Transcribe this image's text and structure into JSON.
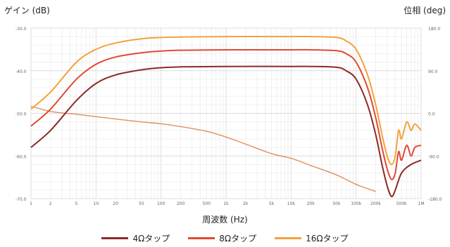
{
  "chart_data": {
    "type": "line",
    "ylabel_left": "ゲイン (dB)",
    "ylabel_right": "位相 (deg)",
    "xlabel": "周波数 (Hz)",
    "x_ticks": [
      "1",
      "2",
      "5",
      "10",
      "20",
      "50",
      "100",
      "200",
      "500",
      "1k",
      "2k",
      "5k",
      "10k",
      "20k",
      "50k",
      "100k",
      "200k",
      "500k",
      "1M"
    ],
    "y_left_ticks": [
      "-30.0",
      "-40.0",
      "-50.0",
      "-60.0",
      "-70.0"
    ],
    "y_right_ticks": [
      "180.0",
      "90.0",
      "0.0",
      "-90.0",
      "-180.0"
    ],
    "ylim_left": [
      -70,
      -30
    ],
    "ylim_right": [
      -180,
      180
    ],
    "xscale": "log",
    "xlim": [
      1,
      1000000
    ],
    "grid": true,
    "legend_position": "bottom",
    "series": [
      {
        "name": "4Ωタップ",
        "color": "#8b2a26",
        "gain": [
          [
            1,
            -58
          ],
          [
            2,
            -54
          ],
          [
            5,
            -47
          ],
          [
            10,
            -43
          ],
          [
            20,
            -41
          ],
          [
            50,
            -39.8
          ],
          [
            100,
            -39.3
          ],
          [
            200,
            -39.1
          ],
          [
            1000,
            -39
          ],
          [
            10000,
            -39
          ],
          [
            20000,
            -39
          ],
          [
            50000,
            -39.2
          ],
          [
            70000,
            -40
          ],
          [
            100000,
            -42
          ],
          [
            150000,
            -48
          ],
          [
            200000,
            -55
          ],
          [
            250000,
            -62
          ],
          [
            300000,
            -67
          ],
          [
            350000,
            -69.5
          ],
          [
            400000,
            -68
          ],
          [
            500000,
            -64
          ],
          [
            700000,
            -62
          ],
          [
            1000000,
            -61
          ]
        ],
        "phase": [
          [
            1,
            15
          ],
          [
            2,
            4
          ],
          [
            5,
            -2
          ],
          [
            10,
            -7
          ],
          [
            20,
            -12
          ],
          [
            50,
            -18
          ],
          [
            100,
            -22
          ],
          [
            200,
            -28
          ],
          [
            500,
            -38
          ],
          [
            1000,
            -50
          ],
          [
            2000,
            -65
          ],
          [
            5000,
            -85
          ],
          [
            10000,
            -95
          ],
          [
            20000,
            -110
          ],
          [
            50000,
            -130
          ],
          [
            100000,
            -150
          ],
          [
            200000,
            -165
          ]
        ]
      },
      {
        "name": "8Ωタップ",
        "color": "#e04a32",
        "gain": [
          [
            1,
            -53
          ],
          [
            2,
            -49
          ],
          [
            5,
            -42
          ],
          [
            10,
            -38.5
          ],
          [
            20,
            -36.8
          ],
          [
            50,
            -35.8
          ],
          [
            100,
            -35.4
          ],
          [
            200,
            -35.2
          ],
          [
            1000,
            -35.1
          ],
          [
            10000,
            -35.1
          ],
          [
            20000,
            -35.1
          ],
          [
            50000,
            -35.3
          ],
          [
            70000,
            -36
          ],
          [
            100000,
            -38
          ],
          [
            150000,
            -44
          ],
          [
            200000,
            -51
          ],
          [
            250000,
            -58
          ],
          [
            300000,
            -63
          ],
          [
            350000,
            -65.5
          ],
          [
            400000,
            -64
          ],
          [
            450000,
            -59
          ],
          [
            500000,
            -61
          ],
          [
            600000,
            -57.5
          ],
          [
            700000,
            -60
          ],
          [
            800000,
            -58
          ],
          [
            1000000,
            -57.5
          ]
        ],
        "phase": [
          [
            1,
            15
          ],
          [
            2,
            4
          ],
          [
            5,
            -2
          ],
          [
            10,
            -7
          ],
          [
            20,
            -12
          ],
          [
            50,
            -18
          ],
          [
            100,
            -22
          ],
          [
            200,
            -28
          ],
          [
            500,
            -38
          ],
          [
            1000,
            -50
          ],
          [
            2000,
            -65
          ],
          [
            5000,
            -85
          ],
          [
            10000,
            -95
          ],
          [
            20000,
            -110
          ],
          [
            50000,
            -130
          ],
          [
            100000,
            -150
          ],
          [
            200000,
            -165
          ]
        ]
      },
      {
        "name": "16Ωタップ",
        "color": "#f3a23a",
        "gain": [
          [
            1,
            -49
          ],
          [
            2,
            -45
          ],
          [
            5,
            -38
          ],
          [
            10,
            -35
          ],
          [
            20,
            -33.5
          ],
          [
            50,
            -32.5
          ],
          [
            100,
            -32.2
          ],
          [
            200,
            -32.1
          ],
          [
            1000,
            -32
          ],
          [
            10000,
            -32
          ],
          [
            20000,
            -32
          ],
          [
            50000,
            -32.2
          ],
          [
            70000,
            -33
          ],
          [
            100000,
            -35
          ],
          [
            150000,
            -41
          ],
          [
            200000,
            -48
          ],
          [
            250000,
            -55
          ],
          [
            300000,
            -60
          ],
          [
            350000,
            -62
          ],
          [
            400000,
            -60
          ],
          [
            450000,
            -54
          ],
          [
            500000,
            -56
          ],
          [
            600000,
            -52
          ],
          [
            700000,
            -54
          ],
          [
            800000,
            -52.5
          ],
          [
            1000000,
            -54
          ]
        ],
        "phase": [
          [
            1,
            15
          ],
          [
            2,
            4
          ],
          [
            5,
            -2
          ],
          [
            10,
            -7
          ],
          [
            20,
            -12
          ],
          [
            50,
            -18
          ],
          [
            100,
            -22
          ],
          [
            200,
            -28
          ],
          [
            500,
            -38
          ],
          [
            1000,
            -50
          ],
          [
            2000,
            -65
          ],
          [
            5000,
            -85
          ],
          [
            10000,
            -95
          ],
          [
            20000,
            -110
          ],
          [
            50000,
            -130
          ],
          [
            100000,
            -150
          ],
          [
            200000,
            -165
          ]
        ]
      }
    ]
  }
}
